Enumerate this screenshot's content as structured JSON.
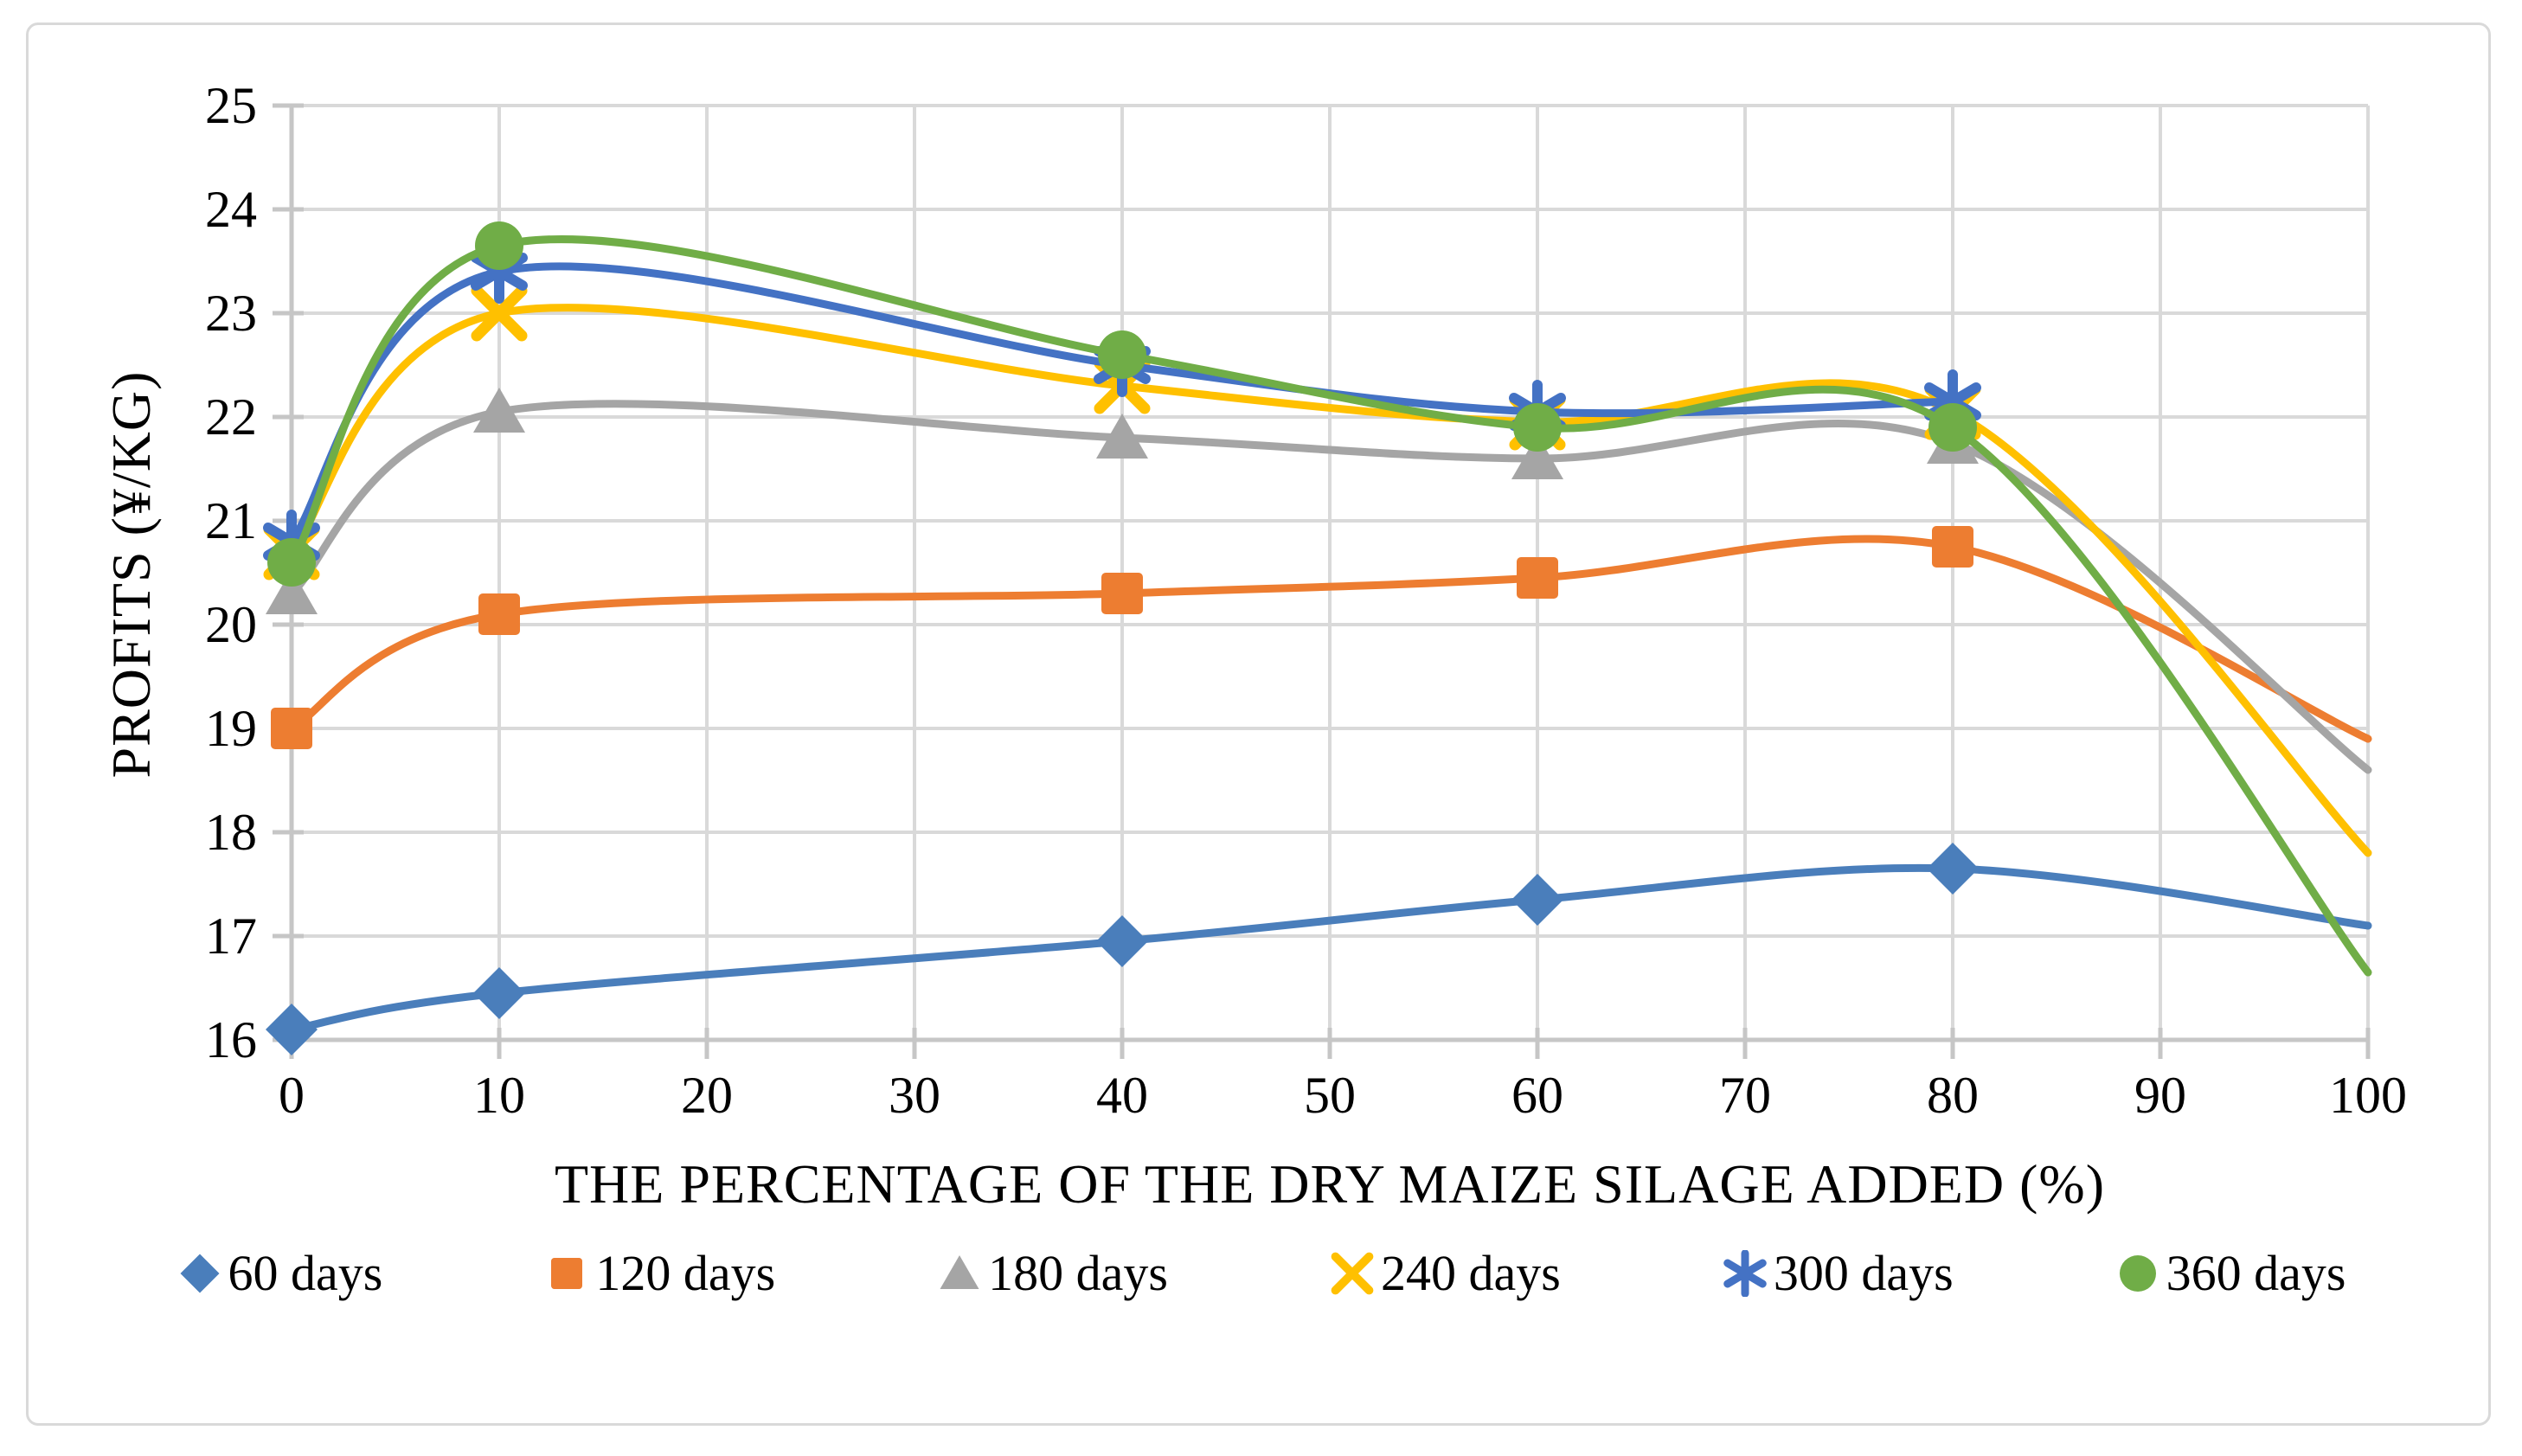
{
  "chart_data": {
    "type": "line",
    "title": "",
    "xlabel": "THE PERCENTAGE OF THE DRY MAIZE SILAGE ADDED (%)",
    "ylabel": "PROFITS (¥/KG)",
    "xlim": [
      0,
      100
    ],
    "ylim": [
      16,
      25
    ],
    "x_ticks": [
      "0",
      "10",
      "20",
      "30",
      "40",
      "50",
      "60",
      "70",
      "80",
      "90",
      "100"
    ],
    "y_ticks": [
      "16",
      "17",
      "18",
      "19",
      "20",
      "21",
      "22",
      "23",
      "24",
      "25"
    ],
    "grid": true,
    "smooth": true,
    "legend_position": "bottom",
    "marker_max_x": 80,
    "series": [
      {
        "name": "60 days",
        "color": "#4A7EBB",
        "marker": "diamond",
        "x": [
          0,
          10,
          40,
          60,
          80,
          100
        ],
        "y": [
          16.1,
          16.45,
          16.95,
          17.35,
          17.65,
          17.1
        ]
      },
      {
        "name": "120 days",
        "color": "#ED7D31",
        "marker": "square",
        "x": [
          0,
          10,
          40,
          60,
          80,
          100
        ],
        "y": [
          19.0,
          20.1,
          20.3,
          20.45,
          20.75,
          18.9
        ]
      },
      {
        "name": "180 days",
        "color": "#A5A5A5",
        "marker": "triangle",
        "x": [
          0,
          10,
          40,
          60,
          80,
          100
        ],
        "y": [
          20.3,
          22.05,
          21.8,
          21.6,
          21.75,
          18.6
        ]
      },
      {
        "name": "240 days",
        "color": "#FFC000",
        "marker": "x",
        "x": [
          0,
          10,
          40,
          60,
          80,
          100
        ],
        "y": [
          20.7,
          23.0,
          22.3,
          21.95,
          22.05,
          17.8
        ]
      },
      {
        "name": "300 days",
        "color": "#4472C4",
        "marker": "asterisk",
        "x": [
          0,
          10,
          40,
          60,
          80
        ],
        "y": [
          20.8,
          23.4,
          22.5,
          22.05,
          22.15
        ]
      },
      {
        "name": "360 days",
        "color": "#70AD47",
        "marker": "circle",
        "x": [
          0,
          10,
          40,
          60,
          80,
          100
        ],
        "y": [
          20.6,
          23.65,
          22.6,
          21.9,
          21.9,
          16.65
        ]
      }
    ],
    "palette": {
      "gridline": "#d9d9d9",
      "axis": "#c6c6c6",
      "border": "#d9d9d9",
      "text": "#000000",
      "background": "#ffffff"
    }
  }
}
